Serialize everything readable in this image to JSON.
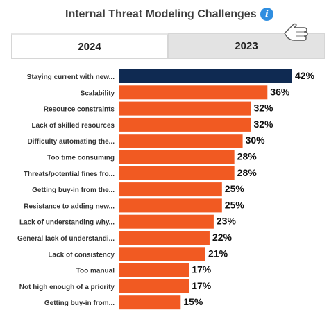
{
  "header": {
    "title": "Internal Threat Modeling Challenges",
    "info_icon": "info-icon",
    "cursor_icon": "hand-pointer-icon"
  },
  "tabs": [
    {
      "label": "2024",
      "active": true
    },
    {
      "label": "2023",
      "active": false
    }
  ],
  "colors": {
    "highlight": "#0f2a52",
    "bar": "#f15a22"
  },
  "chart_data": {
    "type": "bar",
    "orientation": "horizontal",
    "title": "Internal Threat Modeling Challenges",
    "categories": [
      "Staying current with new...",
      "Scalability",
      "Resource constraints",
      "Lack of skilled resources",
      "Difficulty automating the...",
      "Too time consuming",
      "Threats/potential fines fro...",
      "Getting buy-in from the...",
      "Resistance to adding new...",
      "Lack of understanding why...",
      "General lack of understandi...",
      "Lack of consistency",
      "Too manual",
      "Not high enough of a priority",
      "Getting buy-in from..."
    ],
    "values": [
      42,
      36,
      32,
      32,
      30,
      28,
      28,
      25,
      25,
      23,
      22,
      21,
      17,
      17,
      15
    ],
    "value_labels": [
      "42%",
      "36%",
      "32%",
      "32%",
      "30%",
      "28%",
      "28%",
      "25%",
      "25%",
      "23%",
      "22%",
      "21%",
      "17%",
      "17%",
      "15%"
    ],
    "highlighted_index": 0,
    "xlim": [
      0,
      42
    ],
    "grid": false,
    "legend": false
  }
}
